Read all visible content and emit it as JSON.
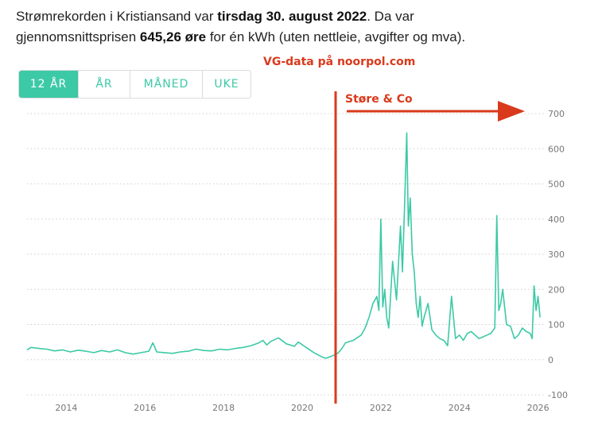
{
  "header": {
    "line1_pre": "Strømrekorden i Kristiansand var ",
    "line1_bold": "tirsdag 30. august 2022",
    "line1_post": ". Da var",
    "line2_pre": "gjennomsnittsprisen ",
    "line2_bold": "645,26 øre",
    "line2_post": " for én kWh (uten nettleie, avgifter og mva)."
  },
  "source_label": "VG-data på noorpol.com",
  "tabs": [
    {
      "label": "12 ÅR",
      "active": true
    },
    {
      "label": "ÅR",
      "active": false
    },
    {
      "label": "MÅNED",
      "active": false
    },
    {
      "label": "UKE",
      "active": false
    }
  ],
  "colors": {
    "line": "#3cc9a6",
    "annotation": "#d93a1c",
    "grid": "#cfcfcf"
  },
  "chart_data": {
    "type": "line",
    "title": "",
    "xlabel": "",
    "ylabel": "",
    "xlim": [
      2013,
      2026.15
    ],
    "ylim": [
      -100,
      720
    ],
    "x_ticks": [
      "2014",
      "2016",
      "2018",
      "2020",
      "2022",
      "2024",
      "2026"
    ],
    "y_ticks": [
      "700",
      "600",
      "500",
      "400",
      "300",
      "200",
      "100",
      "0",
      "-100"
    ],
    "grid": true,
    "axis_side": "right",
    "series": [
      {
        "x": [
          2013.0,
          2013.1,
          2013.3,
          2013.5,
          2013.7,
          2013.9,
          2014.1,
          2014.3,
          2014.5,
          2014.7,
          2014.9,
          2015.1,
          2015.3,
          2015.5,
          2015.7,
          2015.9,
          2016.1,
          2016.2,
          2016.3,
          2016.5,
          2016.7,
          2016.9,
          2017.1,
          2017.3,
          2017.5,
          2017.7,
          2017.9,
          2018.1,
          2018.3,
          2018.5,
          2018.7,
          2018.9,
          2019.0,
          2019.1,
          2019.2,
          2019.4,
          2019.6,
          2019.8,
          2019.9,
          2020.1,
          2020.3,
          2020.5,
          2020.6,
          2020.75,
          2020.9,
          2021.0,
          2021.1,
          2021.3,
          2021.5,
          2021.6,
          2021.7,
          2021.8,
          2021.9,
          2021.95,
          2022.0,
          2022.05,
          2022.1,
          2022.15,
          2022.2,
          2022.3,
          2022.4,
          2022.5,
          2022.55,
          2022.6,
          2022.66,
          2022.7,
          2022.75,
          2022.8,
          2022.85,
          2022.9,
          2022.95,
          2023.0,
          2023.05,
          2023.1,
          2023.2,
          2023.3,
          2023.4,
          2023.5,
          2023.6,
          2023.7,
          2023.8,
          2023.9,
          2024.0,
          2024.1,
          2024.2,
          2024.3,
          2024.4,
          2024.5,
          2024.6,
          2024.7,
          2024.8,
          2024.9,
          2024.95,
          2025.0,
          2025.05,
          2025.1,
          2025.2,
          2025.3,
          2025.4,
          2025.5,
          2025.6,
          2025.7,
          2025.8,
          2025.85,
          2025.9,
          2025.95,
          2026.0,
          2026.05
        ],
        "values": [
          28,
          35,
          32,
          30,
          25,
          28,
          22,
          27,
          24,
          20,
          26,
          22,
          28,
          20,
          16,
          20,
          24,
          48,
          22,
          20,
          18,
          22,
          24,
          30,
          26,
          25,
          30,
          28,
          32,
          35,
          40,
          48,
          55,
          42,
          52,
          62,
          45,
          38,
          50,
          35,
          20,
          8,
          4,
          10,
          18,
          30,
          48,
          55,
          70,
          90,
          120,
          160,
          180,
          140,
          400,
          150,
          200,
          120,
          90,
          280,
          170,
          380,
          250,
          420,
          645,
          380,
          460,
          300,
          250,
          160,
          120,
          180,
          95,
          120,
          160,
          85,
          70,
          60,
          55,
          40,
          180,
          60,
          70,
          55,
          75,
          80,
          70,
          60,
          65,
          70,
          75,
          90,
          410,
          140,
          160,
          200,
          100,
          95,
          60,
          70,
          90,
          80,
          75,
          60,
          210,
          140,
          180,
          120
        ]
      }
    ],
    "annotations": {
      "vertical_line_x": 2020.85,
      "label": "Støre & Co",
      "arrow_y": 140
    }
  }
}
